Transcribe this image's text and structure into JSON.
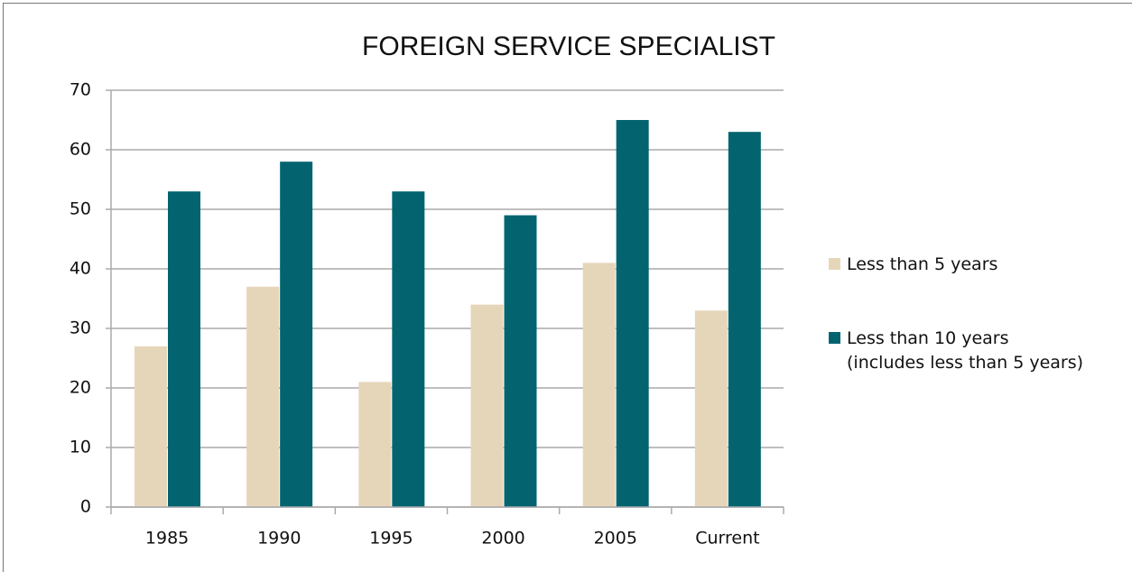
{
  "chart_data": {
    "type": "bar",
    "title": "FOREIGN SERVICE SPECIALIST",
    "categories": [
      "1985",
      "1990",
      "1995",
      "2000",
      "2005",
      "Current"
    ],
    "series": [
      {
        "name": "Less than 5 years",
        "color": "#e6d6b9",
        "values": [
          27,
          37,
          21,
          34,
          41,
          33
        ]
      },
      {
        "name": "Less than 10 years\n(includes less than 5 years)",
        "color": "#03646f",
        "values": [
          53,
          58,
          53,
          49,
          65,
          63
        ]
      }
    ],
    "ylim": [
      0,
      70
    ],
    "yticks": [
      0,
      10,
      20,
      30,
      40,
      50,
      60,
      70
    ],
    "grid": true,
    "legend": "right"
  }
}
